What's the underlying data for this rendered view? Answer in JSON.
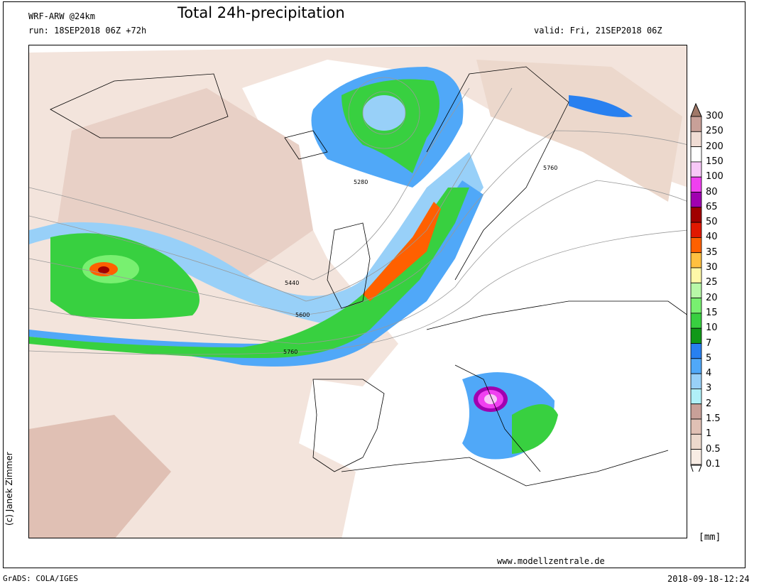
{
  "header": {
    "model": "WRF-ARW @24km",
    "title": "Total 24h-precipitation",
    "run": "run: 18SEP2018 06Z +72h",
    "valid": "valid: Fri, 21SEP2018 06Z"
  },
  "legend": {
    "unit": "[mm]",
    "labels": [
      "300",
      "250",
      "200",
      "150",
      "100",
      "80",
      "65",
      "50",
      "40",
      "35",
      "30",
      "25",
      "20",
      "15",
      "10",
      "7",
      "5",
      "4",
      "3",
      "2",
      "1.5",
      "1",
      "0.5",
      "0.1"
    ],
    "colors": [
      "#c8a098",
      "#f0dcd4",
      "#ffffff",
      "#f8c8f8",
      "#f040f0",
      "#a000b0",
      "#a00000",
      "#e01800",
      "#ff6000",
      "#ffc040",
      "#fff8a8",
      "#b8f8a8",
      "#78f070",
      "#38d040",
      "#109818",
      "#2880f0",
      "#50a8f8",
      "#98d0f8",
      "#b0f0f8",
      "#c8a098",
      "#e0c0b4",
      "#ecd8cc",
      "#f8ece4"
    ],
    "over_color": "#a07868",
    "under_color": "#ffffff"
  },
  "map": {
    "contour_labels": [
      "5280",
      "5440",
      "5600",
      "5760",
      "5760"
    ]
  },
  "credit": "(c) Janek Zimmer",
  "footer": {
    "website": "www.modellzentrale.de",
    "software": "GrADS: COLA/IGES",
    "timestamp": "2018-09-18-12:24"
  }
}
